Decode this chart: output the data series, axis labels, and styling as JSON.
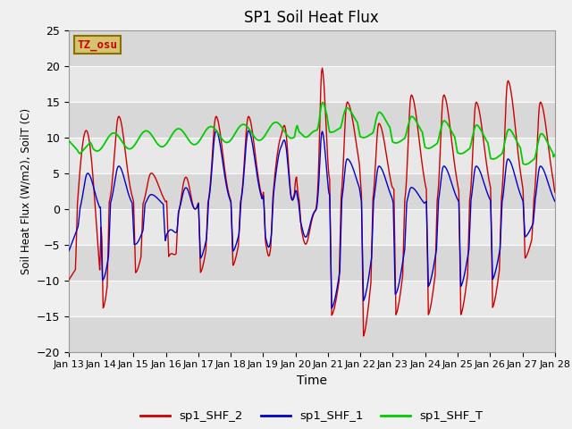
{
  "title": "SP1 Soil Heat Flux",
  "xlabel": "Time",
  "ylabel": "Soil Heat Flux (W/m2), SoilT (C)",
  "ylim": [
    -20,
    25
  ],
  "xlim": [
    0,
    360
  ],
  "yticks": [
    -20,
    -15,
    -10,
    -5,
    0,
    5,
    10,
    15,
    20,
    25
  ],
  "xtick_labels": [
    "Jan 13",
    "Jan 14",
    "Jan 15",
    "Jan 16",
    "Jan 17",
    "Jan 18",
    "Jan 19",
    "Jan 20",
    "Jan 21",
    "Jan 22",
    "Jan 23",
    "Jan 24",
    "Jan 25",
    "Jan 26",
    "Jan 27",
    "Jan 28"
  ],
  "xtick_positions": [
    0,
    24,
    48,
    72,
    96,
    120,
    144,
    168,
    192,
    216,
    240,
    264,
    288,
    312,
    336,
    360
  ],
  "line_colors": [
    "#cc0000",
    "#0000cc",
    "#00cc00"
  ],
  "line_labels": [
    "sp1_SHF_2",
    "sp1_SHF_1",
    "sp1_SHF_T"
  ],
  "fig_bg": "#f0f0f0",
  "band_dark": "#d8d8d8",
  "band_light": "#e8e8e8",
  "tz_label": "TZ_osu",
  "tz_box_color": "#d4c470",
  "tz_text_color": "#cc0000",
  "tz_edge_color": "#8b7000"
}
